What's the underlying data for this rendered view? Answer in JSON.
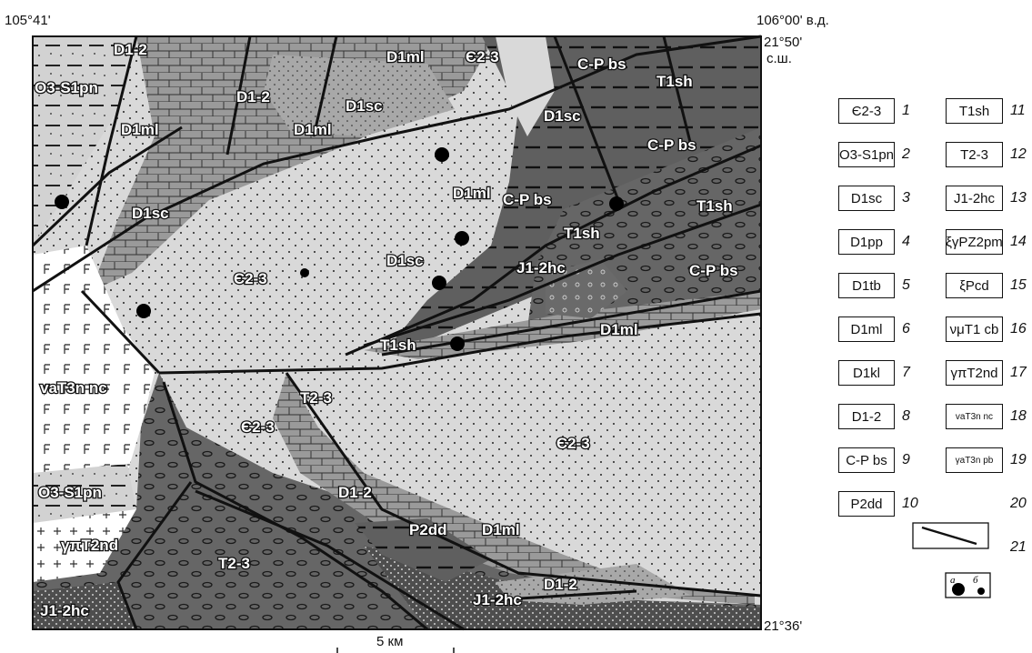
{
  "coords": {
    "top_left": "105°41'",
    "top_right": "106°00' в.д.",
    "lat_top": "21°50'",
    "lat_top_suffix": "с.ш.",
    "lat_bottom": "21°36'"
  },
  "scale": {
    "label": "5 км"
  },
  "map_labels": {
    "d12_top": "D1-2",
    "d1ml_top": "D1ml",
    "e23_top": "Є2-3",
    "cpbs_top": "C-P bs",
    "t1sh_top": "T1sh",
    "o3s1pn_top": "O3-S1pn",
    "d12_mid": "D1-2",
    "d1sc_a": "D1sc",
    "d1ml_left": "D1ml",
    "d1ml_mid": "D1ml",
    "d1sc_right": "D1sc",
    "cpbs_right": "C-P bs",
    "d1ml_center": "D1ml",
    "cpbs_center": "C-P bs",
    "t1sh_right": "T1sh",
    "d1sc_left": "D1sc",
    "t1sh_center": "T1sh",
    "d1sc_center": "D1sc",
    "j12hc_center": "J1-2hc",
    "e23_center": "Є2-3",
    "cpbs_lower": "C-P bs",
    "d1ml_lower": "D1ml",
    "t1sh_lower": "T1sh",
    "vat3n": "vaT3n nc",
    "t23_mid": "T2-3",
    "e23_lower": "Є2-3",
    "e23_right": "Є2-3",
    "o3s1pn_low": "O3-S1pn",
    "d12_low": "D1-2",
    "p2dd": "P2dd",
    "d1ml_low": "D1ml",
    "gpt2nd": "γπT2nd",
    "t23_low": "T2-3",
    "d12_lowright": "D1-2",
    "j12hc_low": "J1-2hc",
    "j12hc_bottom": "J1-2hc"
  },
  "legend": {
    "items": [
      {
        "label": "Є2-3",
        "num": "1"
      },
      {
        "label": "O3-S1pn",
        "num": "2"
      },
      {
        "label": "D1sc",
        "num": "3"
      },
      {
        "label": "D1pp",
        "num": "4"
      },
      {
        "label": "D1tb",
        "num": "5"
      },
      {
        "label": "D1ml",
        "num": "6"
      },
      {
        "label": "D1kl",
        "num": "7"
      },
      {
        "label": "D1-2",
        "num": "8"
      },
      {
        "label": "C-P bs",
        "num": "9"
      },
      {
        "label": "P2dd",
        "num": "10"
      },
      {
        "label": "T1sh",
        "num": "11"
      },
      {
        "label": "T2-3",
        "num": "12"
      },
      {
        "label": "J1-2hc",
        "num": "13"
      },
      {
        "label": "ξγPZ2pm",
        "num": "14"
      },
      {
        "label": "ξPcd",
        "num": "15"
      },
      {
        "label": "νμT1 cb",
        "num": "16"
      },
      {
        "label": "γπT2nd",
        "num": "17"
      },
      {
        "label": "vaT3n nc",
        "num": "18"
      },
      {
        "label": "γaT3n pb",
        "num": "19"
      },
      {
        "label": "",
        "num": "20"
      },
      {
        "label": "",
        "num": "21"
      }
    ],
    "dot_labels": {
      "a": "а",
      "b": "б"
    }
  },
  "colors": {
    "cambrian": "#d9d9d9",
    "devonian": "#9d9d9d",
    "carbperm": "#606060",
    "triassic": "#7a7a7a",
    "jurassic": "#555555",
    "ordovician": "#cfcfcf",
    "intrusive": "#ffffff"
  }
}
